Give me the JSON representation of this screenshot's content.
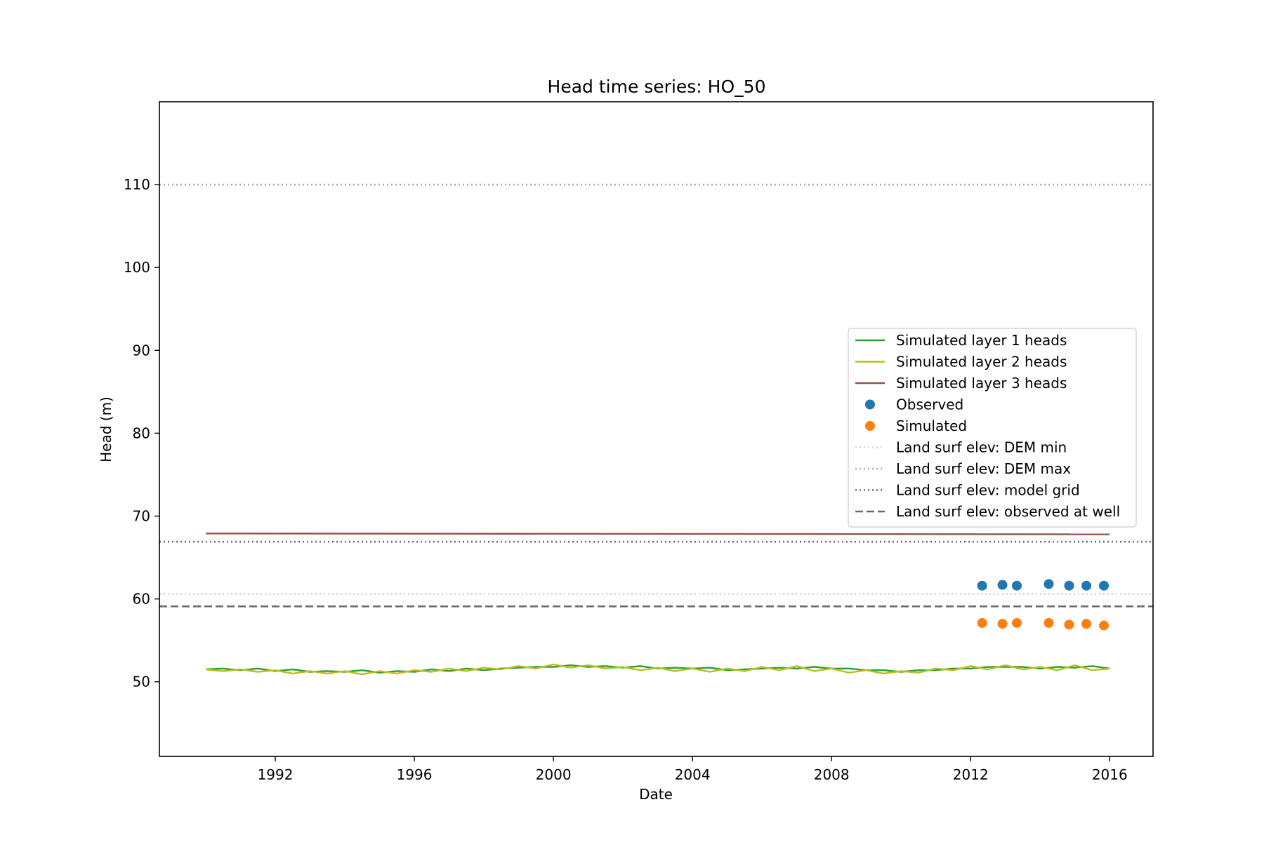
{
  "chart_data": {
    "type": "line",
    "title": "Head time series: HO_50",
    "xlabel": "Date",
    "ylabel": "Head (m)",
    "xlim": [
      "1988-09-01",
      "2017-04-01"
    ],
    "ylim": [
      41,
      120
    ],
    "x_ticks": [
      "1992",
      "1996",
      "2000",
      "2004",
      "2008",
      "2012",
      "2016"
    ],
    "y_ticks": [
      50,
      60,
      70,
      80,
      90,
      100,
      110
    ],
    "grid": false,
    "legend_position": "center-right",
    "series": [
      {
        "name": "Simulated layer 1 heads",
        "kind": "line",
        "color": "#2ca02c",
        "x": [
          "1990-01-01",
          "1990-07-01",
          "1991-01-01",
          "1991-07-01",
          "1992-01-01",
          "1992-07-01",
          "1993-01-01",
          "1993-07-01",
          "1994-01-01",
          "1994-07-01",
          "1995-01-01",
          "1995-07-01",
          "1996-01-01",
          "1996-07-01",
          "1997-01-01",
          "1997-07-01",
          "1998-01-01",
          "1998-07-01",
          "1999-01-01",
          "1999-07-01",
          "2000-01-01",
          "2000-07-01",
          "2001-01-01",
          "2001-07-01",
          "2002-01-01",
          "2002-07-01",
          "2003-01-01",
          "2003-07-01",
          "2004-01-01",
          "2004-07-01",
          "2005-01-01",
          "2005-07-01",
          "2006-01-01",
          "2006-07-01",
          "2007-01-01",
          "2007-07-01",
          "2008-01-01",
          "2008-07-01",
          "2009-01-01",
          "2009-07-01",
          "2010-01-01",
          "2010-07-01",
          "2011-01-01",
          "2011-07-01",
          "2012-01-01",
          "2012-07-01",
          "2013-01-01",
          "2013-07-01",
          "2014-01-01",
          "2014-07-01",
          "2015-01-01",
          "2015-07-01",
          "2016-01-01"
        ],
        "values": [
          51.5,
          51.6,
          51.4,
          51.6,
          51.3,
          51.5,
          51.2,
          51.3,
          51.2,
          51.4,
          51.1,
          51.3,
          51.2,
          51.5,
          51.3,
          51.6,
          51.4,
          51.6,
          51.7,
          51.8,
          51.8,
          52.0,
          51.8,
          51.9,
          51.7,
          51.9,
          51.6,
          51.7,
          51.6,
          51.7,
          51.4,
          51.5,
          51.6,
          51.7,
          51.6,
          51.8,
          51.6,
          51.6,
          51.4,
          51.4,
          51.2,
          51.4,
          51.4,
          51.6,
          51.6,
          51.8,
          51.8,
          51.8,
          51.6,
          51.8,
          51.7,
          51.9,
          51.6
        ]
      },
      {
        "name": "Simulated layer 2 heads",
        "kind": "line",
        "color": "#bcbd22",
        "x": [
          "1990-01-01",
          "1990-07-01",
          "1991-01-01",
          "1991-07-01",
          "1992-01-01",
          "1992-07-01",
          "1993-01-01",
          "1993-07-01",
          "1994-01-01",
          "1994-07-01",
          "1995-01-01",
          "1995-07-01",
          "1996-01-01",
          "1996-07-01",
          "1997-01-01",
          "1997-07-01",
          "1998-01-01",
          "1998-07-01",
          "1999-01-01",
          "1999-07-01",
          "2000-01-01",
          "2000-07-01",
          "2001-01-01",
          "2001-07-01",
          "2002-01-01",
          "2002-07-01",
          "2003-01-01",
          "2003-07-01",
          "2004-01-01",
          "2004-07-01",
          "2005-01-01",
          "2005-07-01",
          "2006-01-01",
          "2006-07-01",
          "2007-01-01",
          "2007-07-01",
          "2008-01-01",
          "2008-07-01",
          "2009-01-01",
          "2009-07-01",
          "2010-01-01",
          "2010-07-01",
          "2011-01-01",
          "2011-07-01",
          "2012-01-01",
          "2012-07-01",
          "2013-01-01",
          "2013-07-01",
          "2014-01-01",
          "2014-07-01",
          "2015-01-01",
          "2015-07-01",
          "2016-01-01"
        ],
        "values": [
          51.5,
          51.3,
          51.5,
          51.2,
          51.4,
          51.0,
          51.3,
          51.0,
          51.3,
          50.9,
          51.3,
          51.0,
          51.4,
          51.2,
          51.6,
          51.3,
          51.7,
          51.5,
          51.9,
          51.6,
          52.1,
          51.7,
          52.0,
          51.6,
          51.8,
          51.4,
          51.7,
          51.3,
          51.6,
          51.2,
          51.6,
          51.3,
          51.8,
          51.4,
          51.9,
          51.3,
          51.6,
          51.1,
          51.4,
          51.0,
          51.3,
          51.1,
          51.6,
          51.4,
          51.9,
          51.5,
          52.0,
          51.5,
          51.8,
          51.4,
          52.0,
          51.4,
          51.6
        ]
      },
      {
        "name": "Simulated layer 3 heads",
        "kind": "line",
        "color": "#8c564b",
        "x": [
          "1990-01-01",
          "2016-01-01"
        ],
        "values": [
          67.9,
          67.8
        ]
      },
      {
        "name": "Observed",
        "kind": "scatter",
        "color": "#1f77b4",
        "x": [
          "2012-05-01",
          "2012-12-01",
          "2013-05-01",
          "2014-04-01",
          "2014-11-01",
          "2015-05-01",
          "2015-11-01"
        ],
        "values": [
          61.6,
          61.7,
          61.6,
          61.8,
          61.6,
          61.6,
          61.6
        ]
      },
      {
        "name": "Simulated",
        "kind": "scatter",
        "color": "#ff7f0e",
        "x": [
          "2012-05-01",
          "2012-12-01",
          "2013-05-01",
          "2014-04-01",
          "2014-11-01",
          "2015-05-01",
          "2015-11-01"
        ],
        "values": [
          57.1,
          57.0,
          57.1,
          57.1,
          56.9,
          57.0,
          56.8
        ]
      }
    ],
    "hlines": [
      {
        "name": "Land surf elev: DEM min",
        "value": 60.6,
        "color": "#d3d3d3",
        "style": "dotted"
      },
      {
        "name": "Land surf elev: DEM max",
        "value": 110.0,
        "color": "#a9a9a9",
        "style": "dotted"
      },
      {
        "name": "Land surf elev: model grid",
        "value": 66.9,
        "color": "#696969",
        "style": "dotted"
      },
      {
        "name": "Land surf elev: observed at well",
        "value": 59.1,
        "color": "#696969",
        "style": "dashed"
      }
    ]
  }
}
